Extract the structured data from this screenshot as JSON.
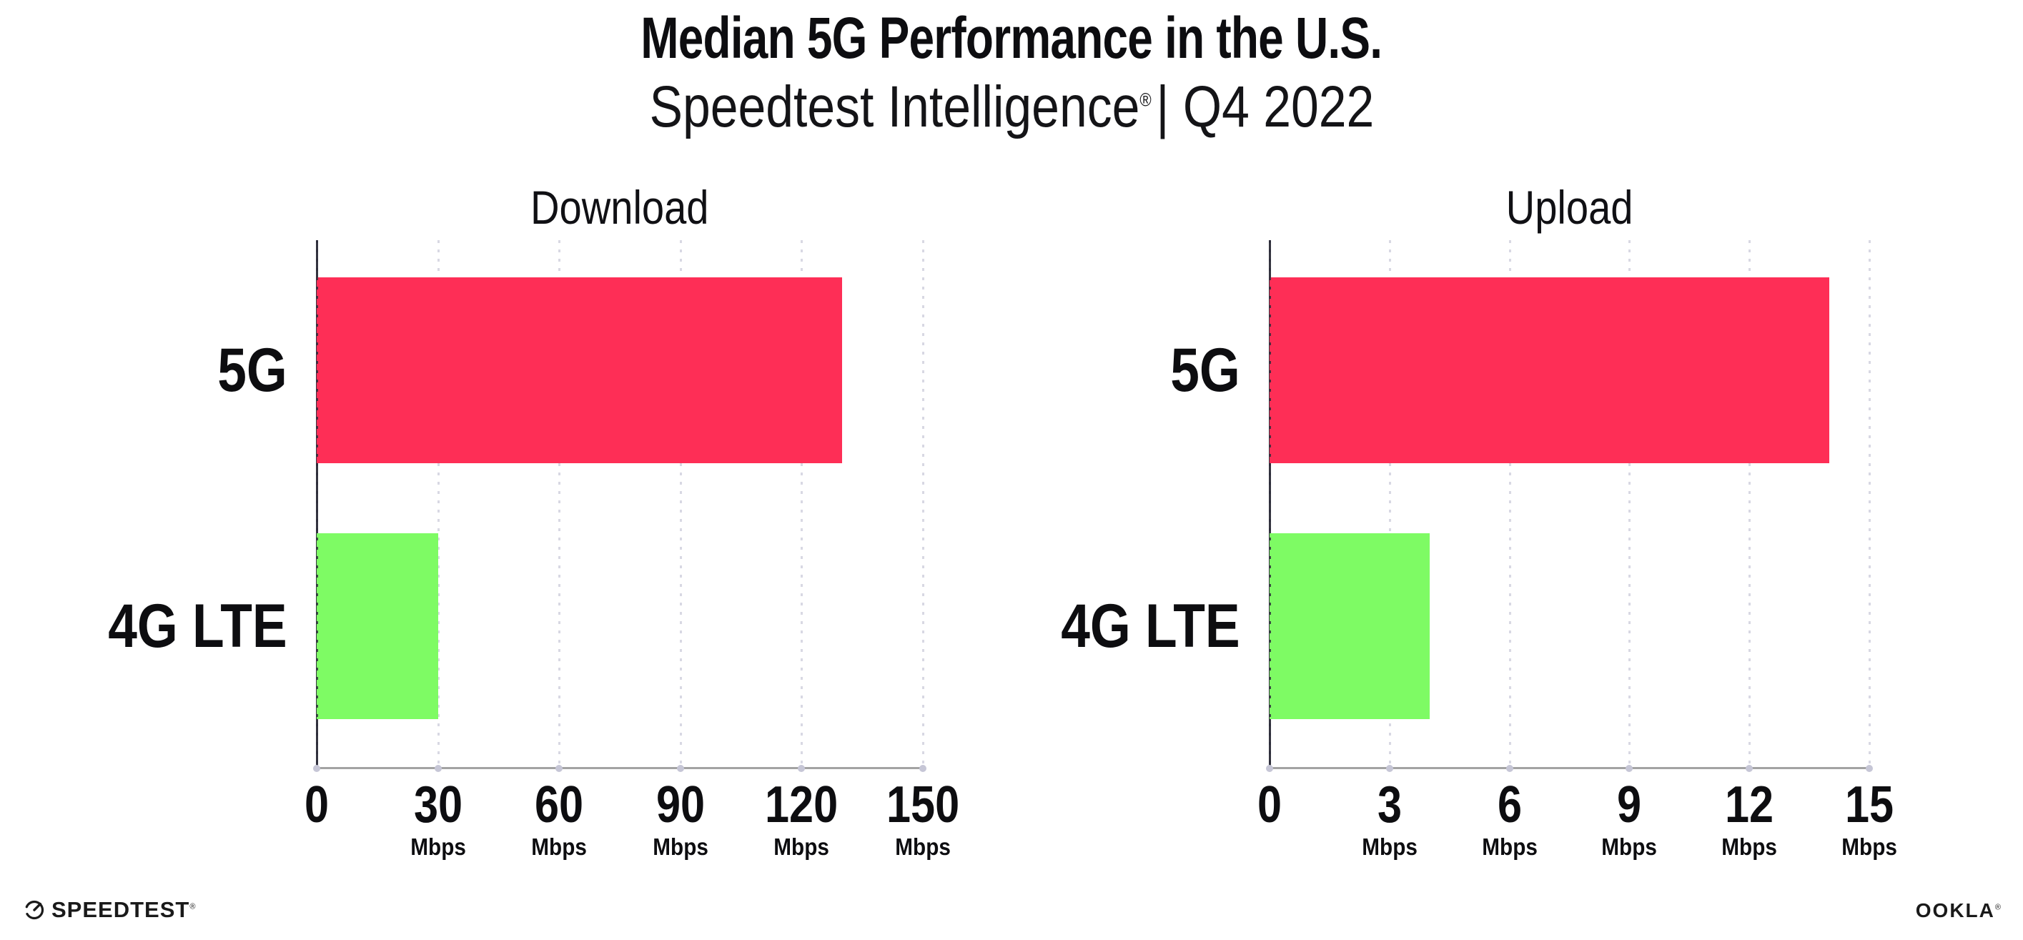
{
  "header": {
    "title": "Median 5G Performance in the U.S.",
    "subtitle": {
      "brand": "Speedtest Intelligence",
      "reg": "®",
      "period": "| Q4 2022"
    }
  },
  "chart_data": [
    {
      "type": "bar",
      "orientation": "horizontal",
      "title": "Download",
      "categories": [
        "5G",
        "4G LTE"
      ],
      "values": [
        130,
        30
      ],
      "unit": "Mbps",
      "xlim": [
        0,
        150
      ],
      "xticks": [
        0,
        30,
        60,
        90,
        120,
        150
      ],
      "bar_colors": [
        "#fe2e56",
        "#7efb64"
      ],
      "grid": "dotted-vertical",
      "legend": "none"
    },
    {
      "type": "bar",
      "orientation": "horizontal",
      "title": "Upload",
      "categories": [
        "5G",
        "4G LTE"
      ],
      "values": [
        14,
        4
      ],
      "unit": "Mbps",
      "xlim": [
        0,
        15
      ],
      "xticks": [
        0,
        3,
        6,
        9,
        12,
        15
      ],
      "bar_colors": [
        "#fe2e56",
        "#7efb64"
      ],
      "grid": "dotted-vertical",
      "legend": "none"
    }
  ],
  "footer": {
    "speedtest": "SPEEDTEST",
    "speedtest_mark": "®",
    "ookla": "OOKLA",
    "ookla_mark": "®"
  },
  "colors": {
    "bar_5g": "#fe2e56",
    "bar_4g_lte": "#7efb64",
    "gridline": "#d8d8e3",
    "x_axis_line": "#a3a3a3",
    "y_axis_line": "#34343f",
    "text": "#0d0d10",
    "background": "#ffffff"
  }
}
